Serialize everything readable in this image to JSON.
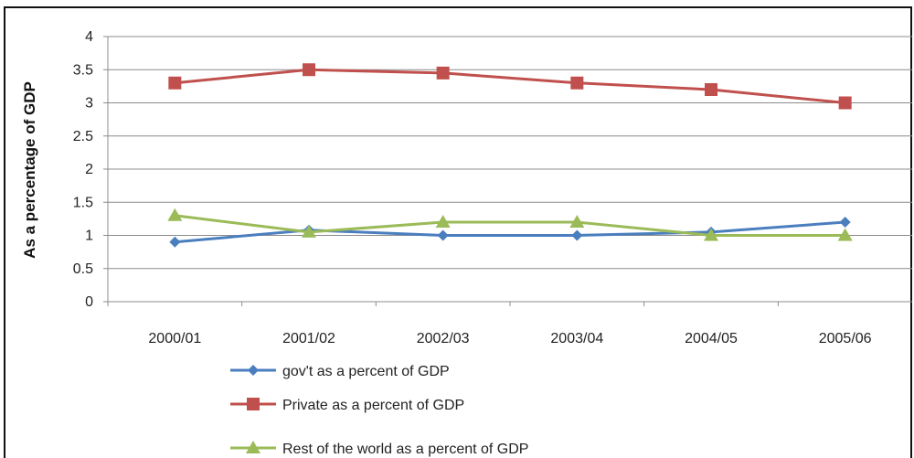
{
  "chart_data": {
    "type": "line",
    "ylabel": "As a percentage of GDP",
    "xlabel": "",
    "title": "",
    "categories": [
      "2000/01",
      "2001/02",
      "2002/03",
      "2003/04",
      "2004/05",
      "2005/06"
    ],
    "ylim": [
      0,
      4
    ],
    "yticks": [
      "0",
      "0.5",
      "1",
      "1.5",
      "2",
      "2.5",
      "3",
      "3.5",
      "4"
    ],
    "grid": "horizontal",
    "legend_position": "bottom",
    "series": [
      {
        "name": "gov't as a percent of GDP",
        "color": "#4a7ebf",
        "marker": "diamond",
        "values": [
          0.9,
          1.08,
          1.0,
          1.0,
          1.05,
          1.2
        ]
      },
      {
        "name": "Private as a percent of GDP",
        "color": "#c0504d",
        "marker": "square",
        "values": [
          3.3,
          3.5,
          3.45,
          3.3,
          3.2,
          3.0
        ]
      },
      {
        "name": "Rest of the world as a percent of GDP",
        "color": "#9bbb59",
        "marker": "triangle",
        "values": [
          1.3,
          1.05,
          1.2,
          1.2,
          1.0,
          1.0
        ]
      }
    ]
  }
}
